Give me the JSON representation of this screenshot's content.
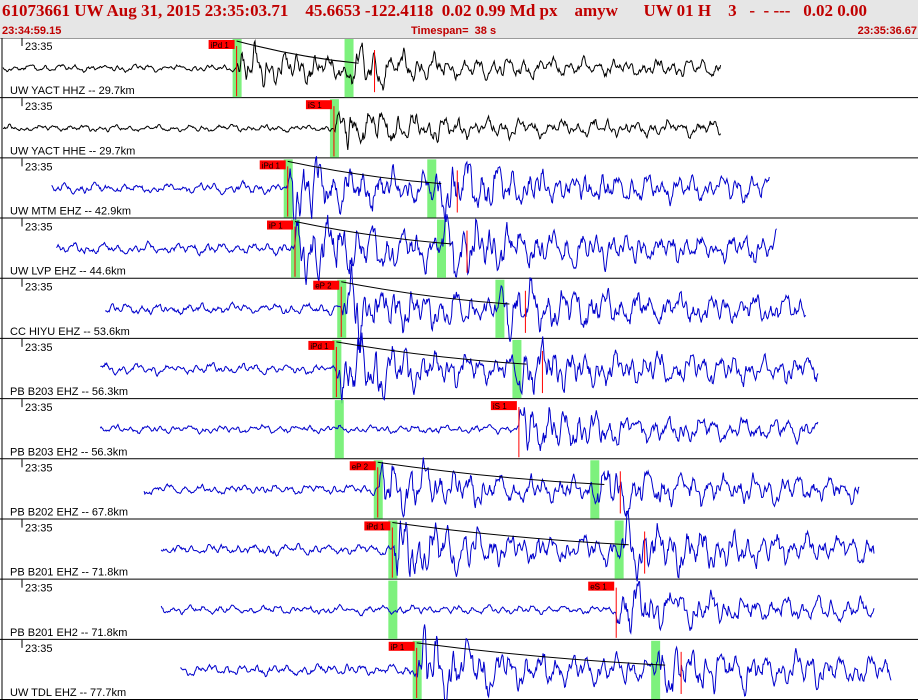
{
  "header": {
    "title": "61073661 UW Aug 31, 2015 23:35:03.71    45.6653 -122.4118  0.02 0.99 Md px    amyw      UW 01 H    3   -  - ---   0.02 0.00",
    "start_time": "23:34:59.15",
    "timespan": "Timespan=  38 s",
    "end_time": "23:35:36.67"
  },
  "colors": {
    "header_bg": "#e6e6e6",
    "header_text": "#c00000",
    "trace_blue": "#0000cc",
    "trace_black": "#000000",
    "pick": "#ff0000",
    "window": "#66ee66"
  },
  "chart_data": {
    "type": "line",
    "time_range": [
      "23:34:59.15",
      "23:35:36.67"
    ],
    "time_tick": "23:35",
    "traces": [
      {
        "label": "UW YACT HHZ -- 29.7km",
        "color": "black",
        "pick": {
          "label": "iPd 1",
          "t": 9.6
        },
        "s_pred_t": 14.2,
        "start_t": 0.0,
        "end_t": 29.5,
        "amp": 0.35
      },
      {
        "label": "UW YACT HHE -- 29.7km",
        "color": "black",
        "pick": {
          "label": "iS 1",
          "t": 13.6
        },
        "start_t": 0.0,
        "end_t": 29.5,
        "amp": 0.35
      },
      {
        "label": "UW MTM EHZ -- 42.9km",
        "color": "blue",
        "pick": {
          "label": "iPd 1",
          "t": 11.7
        },
        "s_pred_t": 17.6,
        "start_t": 2.0,
        "end_t": 31.5,
        "amp": 0.55
      },
      {
        "label": "UW LVP EHZ -- 44.6km",
        "color": "blue",
        "pick": {
          "label": "iP 1",
          "t": 12.0
        },
        "s_pred_t": 18.0,
        "start_t": 2.2,
        "end_t": 31.8,
        "amp": 0.6
      },
      {
        "label": "CC HIYU EHZ -- 53.6km",
        "color": "blue",
        "pick": {
          "label": "eP 2",
          "t": 13.9
        },
        "s_pred_t": 20.4,
        "start_t": 4.2,
        "end_t": 33.0,
        "amp": 0.55
      },
      {
        "label": "PB B203 EHZ -- 56.3km",
        "color": "blue",
        "pick": {
          "label": "iPd 1",
          "t": 13.7
        },
        "s_pred_t": 21.1,
        "start_t": 4.0,
        "end_t": 33.5,
        "amp": 0.55
      },
      {
        "label": "PB B203 EH2 -- 56.3km",
        "color": "blue",
        "pick": {
          "label": "iS 1",
          "t": 21.2
        },
        "p_window_t": 13.8,
        "start_t": 4.0,
        "end_t": 33.5,
        "amp": 0.45
      },
      {
        "label": "PB B202 EHZ -- 67.8km",
        "color": "blue",
        "pick": {
          "label": "eP 2",
          "t": 15.4
        },
        "s_pred_t": 24.3,
        "start_t": 5.8,
        "end_t": 35.2,
        "amp": 0.5
      },
      {
        "label": "PB B201 EHZ -- 71.8km",
        "color": "blue",
        "pick": {
          "label": "iPd 1",
          "t": 16.0
        },
        "s_pred_t": 25.3,
        "start_t": 6.5,
        "end_t": 35.8,
        "amp": 0.55
      },
      {
        "label": "PB B201 EH2 -- 71.8km",
        "color": "blue",
        "pick": {
          "label": "eS 1",
          "t": 25.2
        },
        "p_window_t": 16.0,
        "start_t": 6.5,
        "end_t": 35.8,
        "amp": 0.45
      },
      {
        "label": "UW TDL EHZ -- 77.7km",
        "color": "blue",
        "pick": {
          "label": "iP 1",
          "t": 17.0
        },
        "s_pred_t": 26.8,
        "start_t": 7.3,
        "end_t": 36.5,
        "amp": 0.55
      }
    ]
  }
}
